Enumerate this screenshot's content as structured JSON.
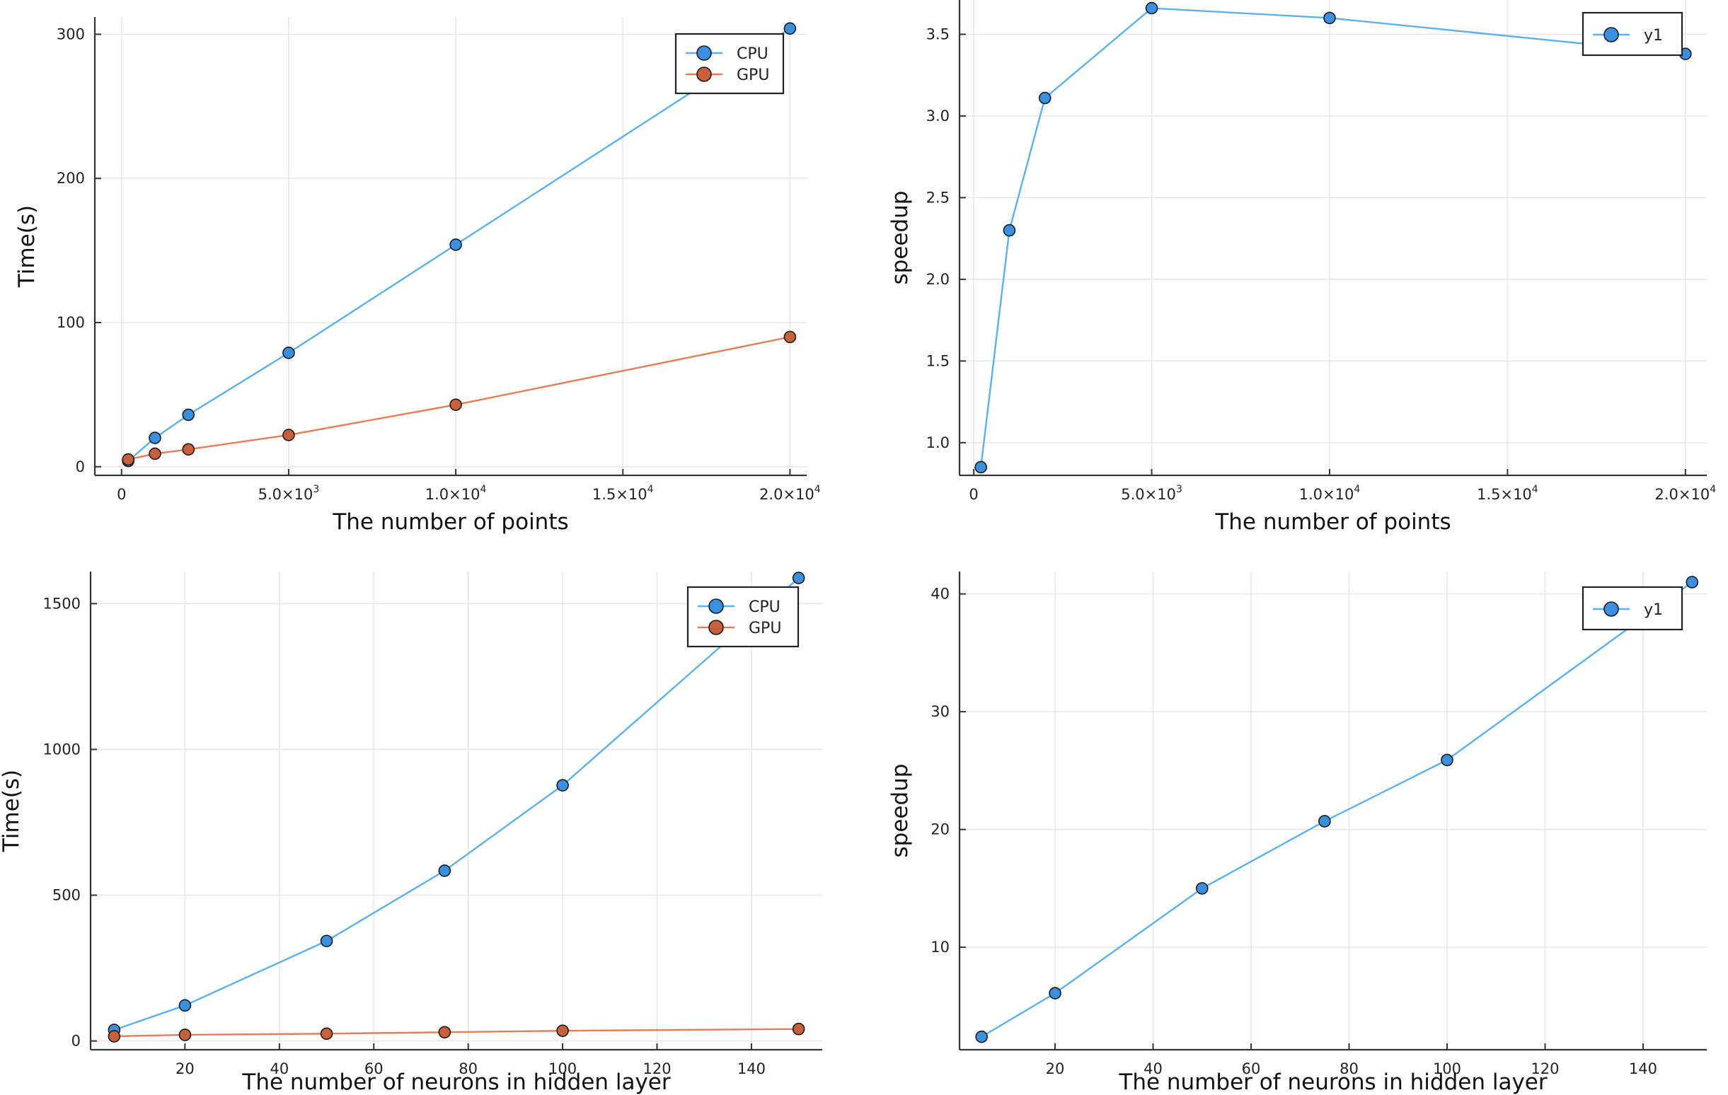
{
  "chart_data": [
    {
      "type": "line",
      "xlabel": "The number of points",
      "ylabel": "Time(s)",
      "xlim": [
        -800,
        20500
      ],
      "ylim": [
        -6,
        312
      ],
      "x_ticks": [
        {
          "value": 0,
          "label": "0"
        },
        {
          "value": 5000,
          "label": "5.0×10",
          "exp": "3"
        },
        {
          "value": 10000,
          "label": "1.0×10",
          "exp": "4"
        },
        {
          "value": 15000,
          "label": "1.5×10",
          "exp": "4"
        },
        {
          "value": 20000,
          "label": "2.0×10",
          "exp": "4"
        }
      ],
      "y_ticks": [
        {
          "value": 0,
          "label": "0"
        },
        {
          "value": 100,
          "label": "100"
        },
        {
          "value": 200,
          "label": "200"
        },
        {
          "value": 300,
          "label": "300"
        }
      ],
      "x": [
        200,
        1000,
        2000,
        5000,
        10000,
        20000
      ],
      "series": [
        {
          "name": "CPU",
          "color": "#5fb0e8",
          "marker": "#3a8fde",
          "values": [
            4,
            20,
            36,
            79,
            154,
            304
          ]
        },
        {
          "name": "GPU",
          "color": "#e07f5a",
          "marker": "#c8603d",
          "values": [
            5,
            9,
            12,
            22,
            43,
            90
          ]
        }
      ],
      "legend_position": "top-right",
      "grid": true
    },
    {
      "type": "line",
      "xlabel": "The number of points",
      "ylabel": "speedup",
      "xlim": [
        -400,
        20600
      ],
      "ylim": [
        0.8,
        3.71
      ],
      "x_ticks": [
        {
          "value": 0,
          "label": "0"
        },
        {
          "value": 5000,
          "label": "5.0×10",
          "exp": "3"
        },
        {
          "value": 10000,
          "label": "1.0×10",
          "exp": "4"
        },
        {
          "value": 15000,
          "label": "1.5×10",
          "exp": "4"
        },
        {
          "value": 20000,
          "label": "2.0×10",
          "exp": "4"
        }
      ],
      "y_ticks": [
        {
          "value": 1.0,
          "label": "1.0"
        },
        {
          "value": 1.5,
          "label": "1.5"
        },
        {
          "value": 2.0,
          "label": "2.0"
        },
        {
          "value": 2.5,
          "label": "2.5"
        },
        {
          "value": 3.0,
          "label": "3.0"
        },
        {
          "value": 3.5,
          "label": "3.5"
        }
      ],
      "x": [
        200,
        1000,
        2000,
        5000,
        10000,
        20000
      ],
      "series": [
        {
          "name": "y1",
          "color": "#5fb0e8",
          "marker": "#3a8fde",
          "values": [
            0.85,
            2.3,
            3.11,
            3.66,
            3.6,
            3.38
          ]
        }
      ],
      "legend_position": "top-right",
      "grid": true
    },
    {
      "type": "line",
      "xlabel": "The number of neurons in hidden layer",
      "ylabel": "Time(s)",
      "xlim": [
        0,
        155
      ],
      "ylim": [
        -30,
        1610
      ],
      "x_ticks": [
        {
          "value": 20,
          "label": "20"
        },
        {
          "value": 40,
          "label": "40"
        },
        {
          "value": 60,
          "label": "60"
        },
        {
          "value": 80,
          "label": "80"
        },
        {
          "value": 100,
          "label": "100"
        },
        {
          "value": 120,
          "label": "120"
        },
        {
          "value": 140,
          "label": "140"
        }
      ],
      "y_ticks": [
        {
          "value": 0,
          "label": "0"
        },
        {
          "value": 500,
          "label": "500"
        },
        {
          "value": 1000,
          "label": "1000"
        },
        {
          "value": 1500,
          "label": "1500"
        }
      ],
      "x": [
        5,
        20,
        50,
        75,
        100,
        150
      ],
      "series": [
        {
          "name": "CPU",
          "color": "#5fb0e8",
          "marker": "#3a8fde",
          "values": [
            38,
            122,
            343,
            584,
            877,
            1588
          ]
        },
        {
          "name": "GPU",
          "color": "#e07f5a",
          "marker": "#c8603d",
          "values": [
            16,
            21,
            25,
            30,
            35,
            41
          ]
        }
      ],
      "legend_position": "top-right",
      "grid": true
    },
    {
      "type": "line",
      "xlabel": "The number of neurons in hidden layer",
      "ylabel": "speedup",
      "xlim": [
        0.5,
        153
      ],
      "ylim": [
        1.3,
        41.9
      ],
      "x_ticks": [
        {
          "value": 20,
          "label": "20"
        },
        {
          "value": 40,
          "label": "40"
        },
        {
          "value": 60,
          "label": "60"
        },
        {
          "value": 80,
          "label": "80"
        },
        {
          "value": 100,
          "label": "100"
        },
        {
          "value": 120,
          "label": "120"
        },
        {
          "value": 140,
          "label": "140"
        }
      ],
      "y_ticks": [
        {
          "value": 10,
          "label": "10"
        },
        {
          "value": 20,
          "label": "20"
        },
        {
          "value": 30,
          "label": "30"
        },
        {
          "value": 40,
          "label": "40"
        }
      ],
      "x": [
        5,
        20,
        50,
        75,
        100,
        150
      ],
      "series": [
        {
          "name": "y1",
          "color": "#5fb0e8",
          "marker": "#3a8fde",
          "values": [
            2.4,
            6.1,
            15.0,
            20.7,
            25.9,
            41.0
          ]
        }
      ],
      "legend_position": "top-right",
      "grid": true
    }
  ]
}
